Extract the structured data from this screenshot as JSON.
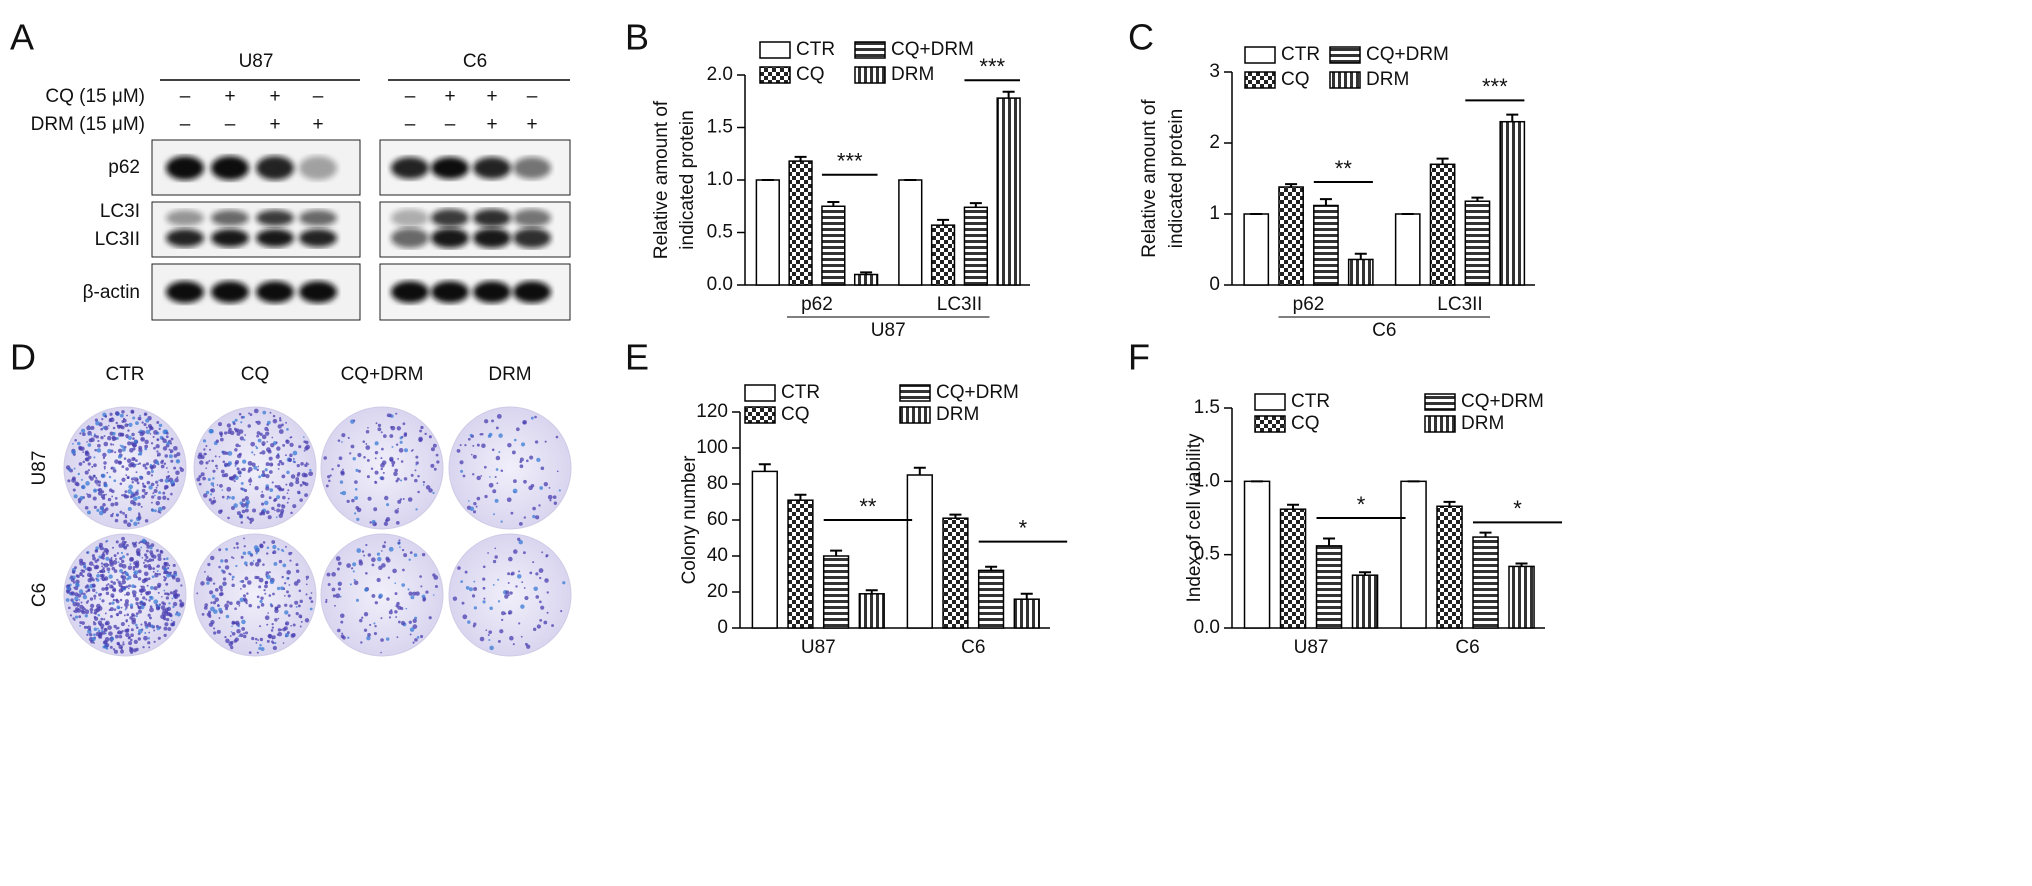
{
  "blot": {
    "label": "A",
    "cell_lines": [
      "U87",
      "C6"
    ],
    "treatments": [
      {
        "name": "CQ (15 μM)",
        "signs": [
          "–",
          "+",
          "+",
          "–"
        ]
      },
      {
        "name": "DRM (15 μM)",
        "signs": [
          "–",
          "–",
          "+",
          "+"
        ]
      }
    ],
    "proteins": [
      "p62",
      "LC3I",
      "LC3II",
      "β-actin"
    ]
  },
  "colony": {
    "label": "D",
    "groups": [
      "CTR",
      "CQ",
      "CQ+DRM",
      "DRM"
    ],
    "cell_lines": [
      "U87",
      "C6"
    ]
  },
  "chart_data": [
    {
      "type": "bar",
      "label": "B",
      "ylabel": [
        "Relative amount of",
        "indicated protein"
      ],
      "categories": [
        "p62",
        "LC3II"
      ],
      "xlabel": "U87",
      "series": [
        {
          "name": "CTR",
          "pattern": "none",
          "values": [
            1,
            1
          ],
          "errors": [
            0,
            0
          ]
        },
        {
          "name": "CQ",
          "pattern": "checker",
          "values": [
            1.18,
            0.57
          ],
          "errors": [
            0.04,
            0.05
          ]
        },
        {
          "name": "CQ+DRM",
          "pattern": "horizontal",
          "values": [
            0.75,
            0.74
          ],
          "errors": [
            0.04,
            0.04
          ]
        },
        {
          "name": "DRM",
          "pattern": "vertical",
          "values": [
            0.1,
            1.78
          ],
          "errors": [
            0.02,
            0.06
          ]
        }
      ],
      "ylim": [
        0,
        2
      ],
      "yticks": [
        {
          "value": 0,
          "label": "0.0"
        },
        {
          "value": 0.5,
          "label": "0.5"
        },
        {
          "value": 1,
          "label": "1.0"
        },
        {
          "value": 1.5,
          "label": "1.5"
        },
        {
          "value": 2,
          "label": "2.0"
        }
      ],
      "annotations": [
        {
          "category": 0,
          "from": 2,
          "to": 3,
          "y": 1.05,
          "text": "***"
        },
        {
          "category": 1,
          "from": 2,
          "to": 3,
          "y": 1.95,
          "text": "***"
        }
      ]
    },
    {
      "type": "bar",
      "label": "C",
      "ylabel": [
        "Relative amount of",
        "indicated protein"
      ],
      "categories": [
        "p62",
        "LC3II"
      ],
      "xlabel": "C6",
      "series": [
        {
          "name": "CTR",
          "pattern": "none",
          "values": [
            1,
            1
          ],
          "errors": [
            0,
            0
          ]
        },
        {
          "name": "CQ",
          "pattern": "checker",
          "values": [
            1.38,
            1.7
          ],
          "errors": [
            0.04,
            0.08
          ]
        },
        {
          "name": "CQ+DRM",
          "pattern": "horizontal",
          "values": [
            1.12,
            1.18
          ],
          "errors": [
            0.09,
            0.05
          ]
        },
        {
          "name": "DRM",
          "pattern": "vertical",
          "values": [
            0.36,
            2.3
          ],
          "errors": [
            0.08,
            0.1
          ]
        }
      ],
      "ylim": [
        0,
        3
      ],
      "yticks": [
        0,
        1,
        2,
        3
      ],
      "annotations": [
        {
          "category": 0,
          "from": 2,
          "to": 3,
          "y": 1.45,
          "text": "**"
        },
        {
          "category": 1,
          "from": 2,
          "to": 3,
          "y": 2.6,
          "text": "***"
        }
      ]
    },
    {
      "type": "bar",
      "label": "E",
      "ylabel": [
        "Colony number"
      ],
      "categories": [
        "U87",
        "C6"
      ],
      "series": [
        {
          "name": "CTR",
          "pattern": "none",
          "values": [
            87,
            85
          ],
          "errors": [
            4,
            4
          ]
        },
        {
          "name": "CQ",
          "pattern": "checker",
          "values": [
            71,
            61
          ],
          "errors": [
            3,
            2
          ]
        },
        {
          "name": "CQ+DRM",
          "pattern": "horizontal",
          "values": [
            40,
            32
          ],
          "errors": [
            3,
            2
          ]
        },
        {
          "name": "DRM",
          "pattern": "vertical",
          "values": [
            19,
            16
          ],
          "errors": [
            2,
            3
          ]
        }
      ],
      "ylim": [
        0,
        120
      ],
      "yticks": [
        0,
        20,
        40,
        60,
        80,
        100,
        120
      ],
      "annotations": [
        {
          "category": 0,
          "from": 2,
          "to": 3,
          "y": 60,
          "text": "**"
        },
        {
          "category": 1,
          "from": 2,
          "to": 3,
          "y": 48,
          "text": "*"
        }
      ]
    },
    {
      "type": "bar",
      "label": "F",
      "ylabel": [
        "Index of cell viability"
      ],
      "categories": [
        "U87",
        "C6"
      ],
      "series": [
        {
          "name": "CTR",
          "pattern": "none",
          "values": [
            1,
            1
          ],
          "errors": [
            0,
            0
          ]
        },
        {
          "name": "CQ",
          "pattern": "checker",
          "values": [
            0.81,
            0.83
          ],
          "errors": [
            0.03,
            0.03
          ]
        },
        {
          "name": "CQ+DRM",
          "pattern": "horizontal",
          "values": [
            0.56,
            0.62
          ],
          "errors": [
            0.05,
            0.03
          ]
        },
        {
          "name": "DRM",
          "pattern": "vertical",
          "values": [
            0.36,
            0.42
          ],
          "errors": [
            0.02,
            0.02
          ]
        }
      ],
      "ylim": [
        0,
        1.5
      ],
      "yticks": [
        {
          "value": 0,
          "label": "0.0"
        },
        {
          "value": 0.5,
          "label": "0.5"
        },
        {
          "value": 1,
          "label": "1.0"
        },
        {
          "value": 1.5,
          "label": "1.5"
        }
      ],
      "annotations": [
        {
          "category": 0,
          "from": 2,
          "to": 3,
          "y": 0.75,
          "text": "*"
        },
        {
          "category": 1,
          "from": 2,
          "to": 3,
          "y": 0.72,
          "text": "*"
        }
      ]
    }
  ]
}
